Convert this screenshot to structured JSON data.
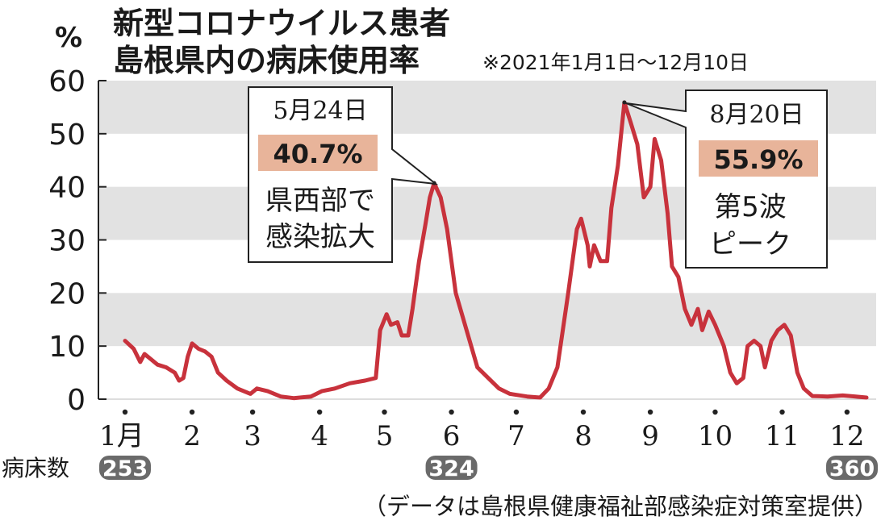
{
  "title_line1": "新型コロナウイルス患者",
  "title_line2": "島根県内の病床使用率",
  "period_note": "※2021年1月1日～12月10日",
  "y_unit": "%",
  "bed_label": "病床数",
  "source_note": "（データは島根県健康福祉部感染症対策室提供）",
  "callout_may": {
    "date": "5月24日",
    "value": "40.7%",
    "note_line1": "県西部で",
    "note_line2": "感染拡大"
  },
  "callout_aug": {
    "date": "8月20日",
    "value": "55.9%",
    "note_line1": "第5波",
    "note_line2": "ピーク"
  },
  "colors": {
    "line": "#c8323c",
    "band": "#e2e2e2",
    "highlight": "#e8b49a",
    "badge": "#6a6a6a"
  },
  "chart_data": {
    "type": "line",
    "ylim": [
      0,
      60
    ],
    "yticks": [
      0,
      10,
      20,
      30,
      40,
      50,
      60
    ],
    "grid_bands": true,
    "month_labels": [
      "1月",
      "2",
      "3",
      "4",
      "5",
      "6",
      "7",
      "8",
      "9",
      "10",
      "11",
      "12"
    ],
    "bed_counts": [
      {
        "date": "2021-01-01",
        "value": "253"
      },
      {
        "date": "2021-06-01",
        "value": "324"
      },
      {
        "date": "2021-12-10",
        "value": "360"
      }
    ],
    "series": [
      {
        "name": "病床使用率",
        "points": [
          [
            "2021-01-01",
            11
          ],
          [
            "2021-01-05",
            9.5
          ],
          [
            "2021-01-08",
            7
          ],
          [
            "2021-01-10",
            8.5
          ],
          [
            "2021-01-13",
            7.5
          ],
          [
            "2021-01-16",
            6.5
          ],
          [
            "2021-01-20",
            6
          ],
          [
            "2021-01-24",
            5
          ],
          [
            "2021-01-26",
            3.5
          ],
          [
            "2021-01-28",
            4
          ],
          [
            "2021-01-30",
            8
          ],
          [
            "2021-02-01",
            10.5
          ],
          [
            "2021-02-04",
            9.5
          ],
          [
            "2021-02-07",
            9
          ],
          [
            "2021-02-10",
            8
          ],
          [
            "2021-02-13",
            5
          ],
          [
            "2021-02-17",
            3.5
          ],
          [
            "2021-02-22",
            2
          ],
          [
            "2021-02-28",
            1
          ],
          [
            "2021-03-03",
            2
          ],
          [
            "2021-03-08",
            1.5
          ],
          [
            "2021-03-14",
            0.5
          ],
          [
            "2021-03-20",
            0.2
          ],
          [
            "2021-03-28",
            0.5
          ],
          [
            "2021-04-02",
            1.5
          ],
          [
            "2021-04-08",
            2
          ],
          [
            "2021-04-15",
            3
          ],
          [
            "2021-04-22",
            3.5
          ],
          [
            "2021-04-27",
            4
          ],
          [
            "2021-04-29",
            13
          ],
          [
            "2021-05-02",
            16
          ],
          [
            "2021-05-04",
            14
          ],
          [
            "2021-05-07",
            14.5
          ],
          [
            "2021-05-09",
            12
          ],
          [
            "2021-05-12",
            12
          ],
          [
            "2021-05-14",
            17
          ],
          [
            "2021-05-17",
            26
          ],
          [
            "2021-05-20",
            33
          ],
          [
            "2021-05-22",
            38
          ],
          [
            "2021-05-24",
            40.7
          ],
          [
            "2021-05-27",
            38
          ],
          [
            "2021-05-30",
            32
          ],
          [
            "2021-06-03",
            20
          ],
          [
            "2021-06-08",
            13
          ],
          [
            "2021-06-13",
            6
          ],
          [
            "2021-06-18",
            4
          ],
          [
            "2021-06-23",
            2
          ],
          [
            "2021-06-28",
            1
          ],
          [
            "2021-07-06",
            0.5
          ],
          [
            "2021-07-12",
            0.3
          ],
          [
            "2021-07-16",
            2
          ],
          [
            "2021-07-20",
            6
          ],
          [
            "2021-07-25",
            20
          ],
          [
            "2021-07-29",
            32
          ],
          [
            "2021-07-31",
            34
          ],
          [
            "2021-08-03",
            29
          ],
          [
            "2021-08-04",
            25
          ],
          [
            "2021-08-06",
            29
          ],
          [
            "2021-08-09",
            26
          ],
          [
            "2021-08-12",
            26
          ],
          [
            "2021-08-14",
            36
          ],
          [
            "2021-08-17",
            44
          ],
          [
            "2021-08-20",
            55.9
          ],
          [
            "2021-08-23",
            52
          ],
          [
            "2021-08-26",
            48
          ],
          [
            "2021-08-29",
            38
          ],
          [
            "2021-09-01",
            40
          ],
          [
            "2021-09-03",
            49
          ],
          [
            "2021-09-06",
            45
          ],
          [
            "2021-09-09",
            35
          ],
          [
            "2021-09-11",
            25
          ],
          [
            "2021-09-14",
            23
          ],
          [
            "2021-09-17",
            17
          ],
          [
            "2021-09-20",
            14
          ],
          [
            "2021-09-23",
            17
          ],
          [
            "2021-09-25",
            13
          ],
          [
            "2021-09-28",
            16.5
          ],
          [
            "2021-10-01",
            14
          ],
          [
            "2021-10-05",
            10
          ],
          [
            "2021-10-08",
            5
          ],
          [
            "2021-10-11",
            3
          ],
          [
            "2021-10-14",
            4
          ],
          [
            "2021-10-16",
            10
          ],
          [
            "2021-10-19",
            11
          ],
          [
            "2021-10-22",
            10
          ],
          [
            "2021-10-24",
            6
          ],
          [
            "2021-10-27",
            11
          ],
          [
            "2021-10-30",
            13
          ],
          [
            "2021-11-02",
            14
          ],
          [
            "2021-11-05",
            12
          ],
          [
            "2021-11-08",
            5
          ],
          [
            "2021-11-11",
            2
          ],
          [
            "2021-11-15",
            0.6
          ],
          [
            "2021-11-22",
            0.5
          ],
          [
            "2021-11-29",
            0.7
          ],
          [
            "2021-12-05",
            0.5
          ],
          [
            "2021-12-10",
            0.3
          ]
        ]
      }
    ],
    "annotations": [
      {
        "date": "2021-05-24",
        "value": 40.7
      },
      {
        "date": "2021-08-20",
        "value": 55.9
      }
    ]
  }
}
